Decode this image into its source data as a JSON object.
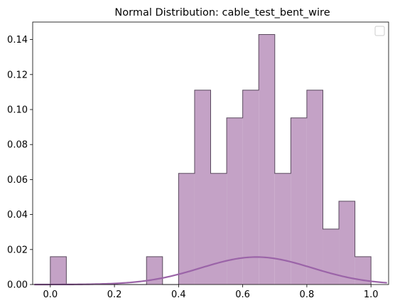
{
  "chart_data": {
    "type": "bar",
    "title": "Normal Distribution: cable_test_bent_wire",
    "xlabel": "",
    "ylabel": "",
    "xlim": [
      -0.055,
      1.055
    ],
    "ylim": [
      0,
      0.15
    ],
    "x_ticks": [
      "0.0",
      "0.2",
      "0.4",
      "0.6",
      "0.8",
      "1.0"
    ],
    "x_tick_values": [
      0.0,
      0.2,
      0.4,
      0.6,
      0.8,
      1.0
    ],
    "y_ticks": [
      "0.00",
      "0.02",
      "0.04",
      "0.06",
      "0.08",
      "0.10",
      "0.12",
      "0.14"
    ],
    "y_tick_values": [
      0,
      0.02,
      0.04,
      0.06,
      0.08,
      0.1,
      0.12,
      0.14
    ],
    "bin_edges": [
      0.0,
      0.05,
      0.1,
      0.15,
      0.2,
      0.25,
      0.3,
      0.35,
      0.4,
      0.45,
      0.5,
      0.55,
      0.6,
      0.65,
      0.7,
      0.75,
      0.8,
      0.85,
      0.9,
      0.95,
      1.0
    ],
    "bin_heights": [
      0.0159,
      0,
      0,
      0,
      0,
      0,
      0.0159,
      0,
      0.0635,
      0.1111,
      0.0635,
      0.0952,
      0.1111,
      0.1429,
      0.0635,
      0.0952,
      0.1111,
      0.0317,
      0.0476,
      0.0159
    ],
    "density_curve": {
      "mean": 0.643,
      "std": 0.173,
      "scale": 0.00681,
      "x_range": [
        -0.05,
        1.05
      ]
    },
    "legend_position": "upper-right",
    "grid": false,
    "colors": {
      "hist_fill": "#c4a2c6",
      "hist_edge": "#5a4a5e",
      "curve": "#9b64a8"
    }
  }
}
